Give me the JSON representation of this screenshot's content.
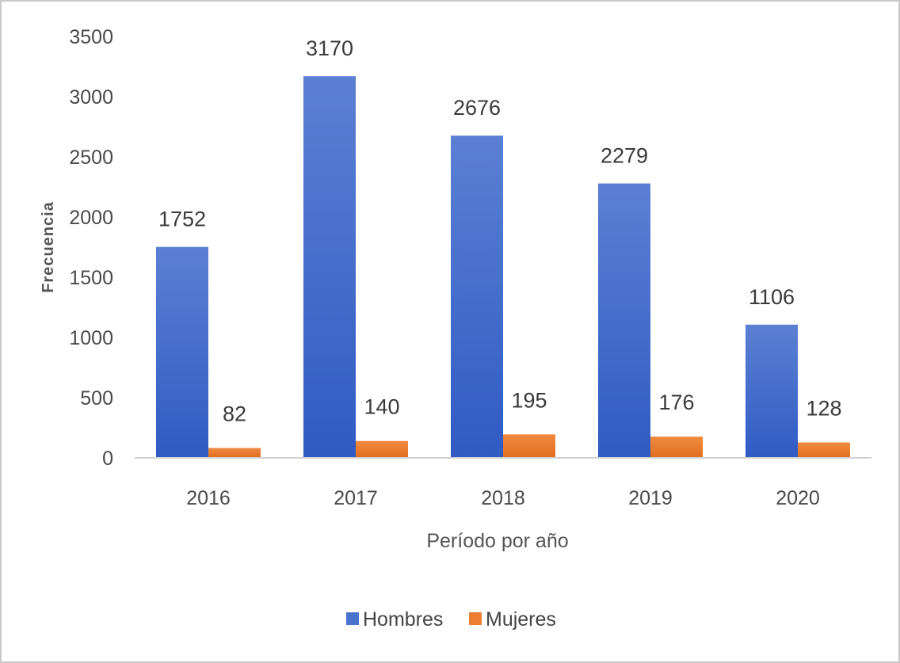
{
  "chart_data": {
    "type": "bar",
    "categories": [
      "2016",
      "2017",
      "2018",
      "2019",
      "2020"
    ],
    "series": [
      {
        "name": "Hombres",
        "values": [
          1752,
          3170,
          2676,
          2279,
          1106
        ],
        "color": "#4a72cf"
      },
      {
        "name": "Mujeres",
        "values": [
          82,
          140,
          195,
          176,
          128
        ],
        "color": "#ed7d31"
      }
    ],
    "xlabel": "Período por año",
    "ylabel": "Frecuencia",
    "ylim": [
      0,
      3500
    ],
    "yticks": [
      0,
      500,
      1000,
      1500,
      2000,
      2500,
      3000,
      3500
    ],
    "grid": false,
    "legend_position": "bottom"
  }
}
